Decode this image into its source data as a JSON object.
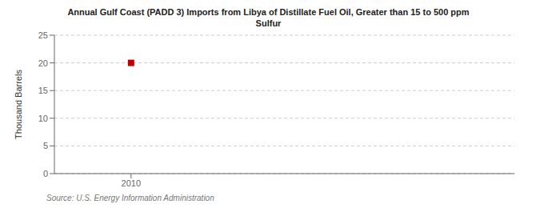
{
  "chart_data": {
    "type": "scatter",
    "title": "Annual Gulf Coast (PADD 3) Imports from Libya of Distillate Fuel Oil, Greater than 15 to 500 ppm\nSulfur",
    "ylabel": "Thousand Barrels",
    "annotations": [
      "Source: U.S. Energy Information Administration"
    ],
    "x": [
      2010
    ],
    "values": [
      20
    ],
    "color": "#c00000",
    "marker": "square",
    "xlim": [
      2009.4,
      2013.0
    ],
    "xticks": [
      2010
    ],
    "ylim": [
      0,
      25
    ],
    "yticks": [
      0,
      5,
      10,
      15,
      20,
      25
    ],
    "grid": true
  }
}
